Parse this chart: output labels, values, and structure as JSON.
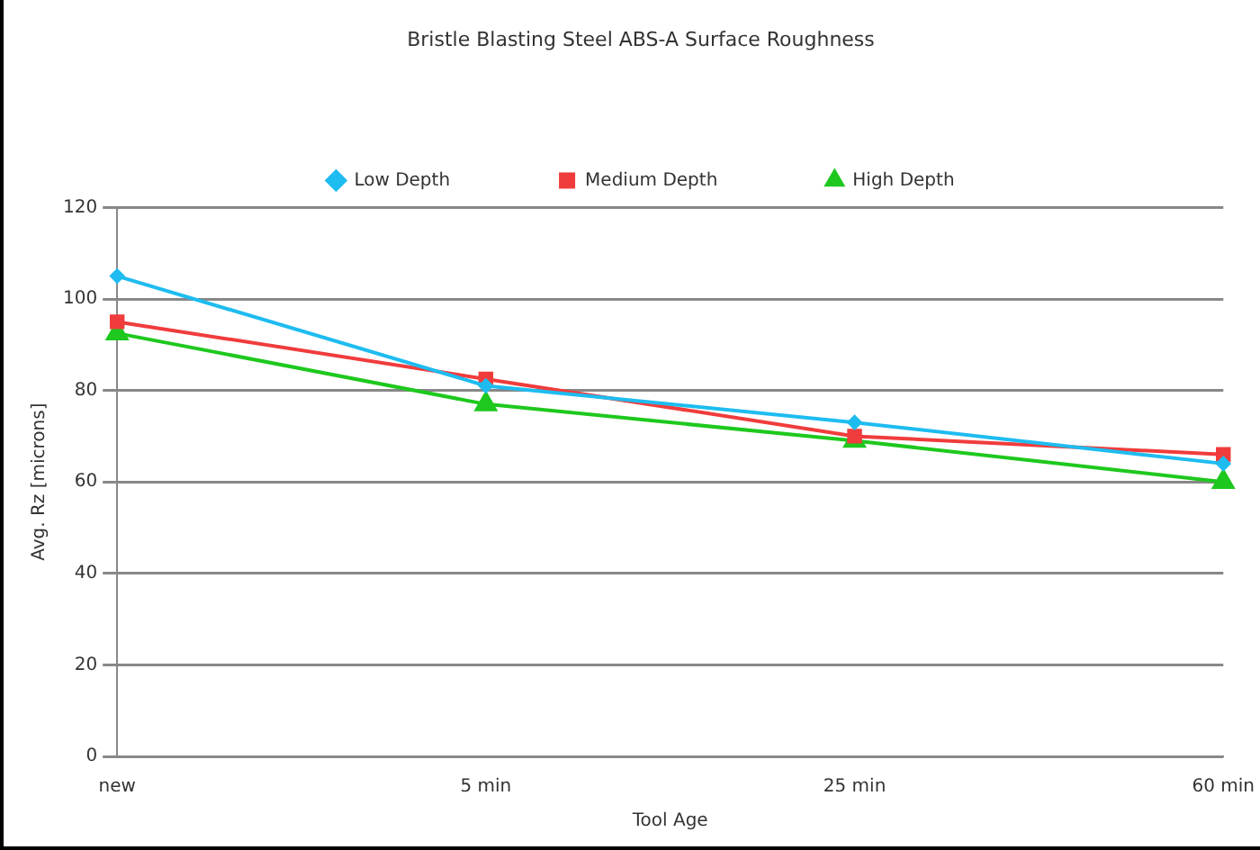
{
  "chart_data": {
    "type": "line",
    "title": "Bristle Blasting Steel ABS-A Surface Roughness",
    "xlabel": "Tool Age",
    "ylabel": "Avg. Rz [microns]",
    "categories": [
      "new",
      "5 min",
      "25 min",
      "60 min"
    ],
    "series": [
      {
        "name": "Low Depth",
        "color": "#1ebcf0",
        "marker": "diamond",
        "values": [
          105,
          81,
          73,
          64
        ]
      },
      {
        "name": "Medium Depth",
        "color": "#f03c3c",
        "marker": "square",
        "values": [
          95,
          82.5,
          70,
          66
        ]
      },
      {
        "name": "High Depth",
        "color": "#1ec81e",
        "marker": "triangle",
        "values": [
          92.5,
          77,
          69,
          60
        ]
      }
    ],
    "ylim": [
      0,
      120
    ],
    "yticks": [
      0,
      20,
      40,
      60,
      80,
      100,
      120
    ],
    "grid": "y",
    "legend": "top",
    "line_style": "solid"
  }
}
